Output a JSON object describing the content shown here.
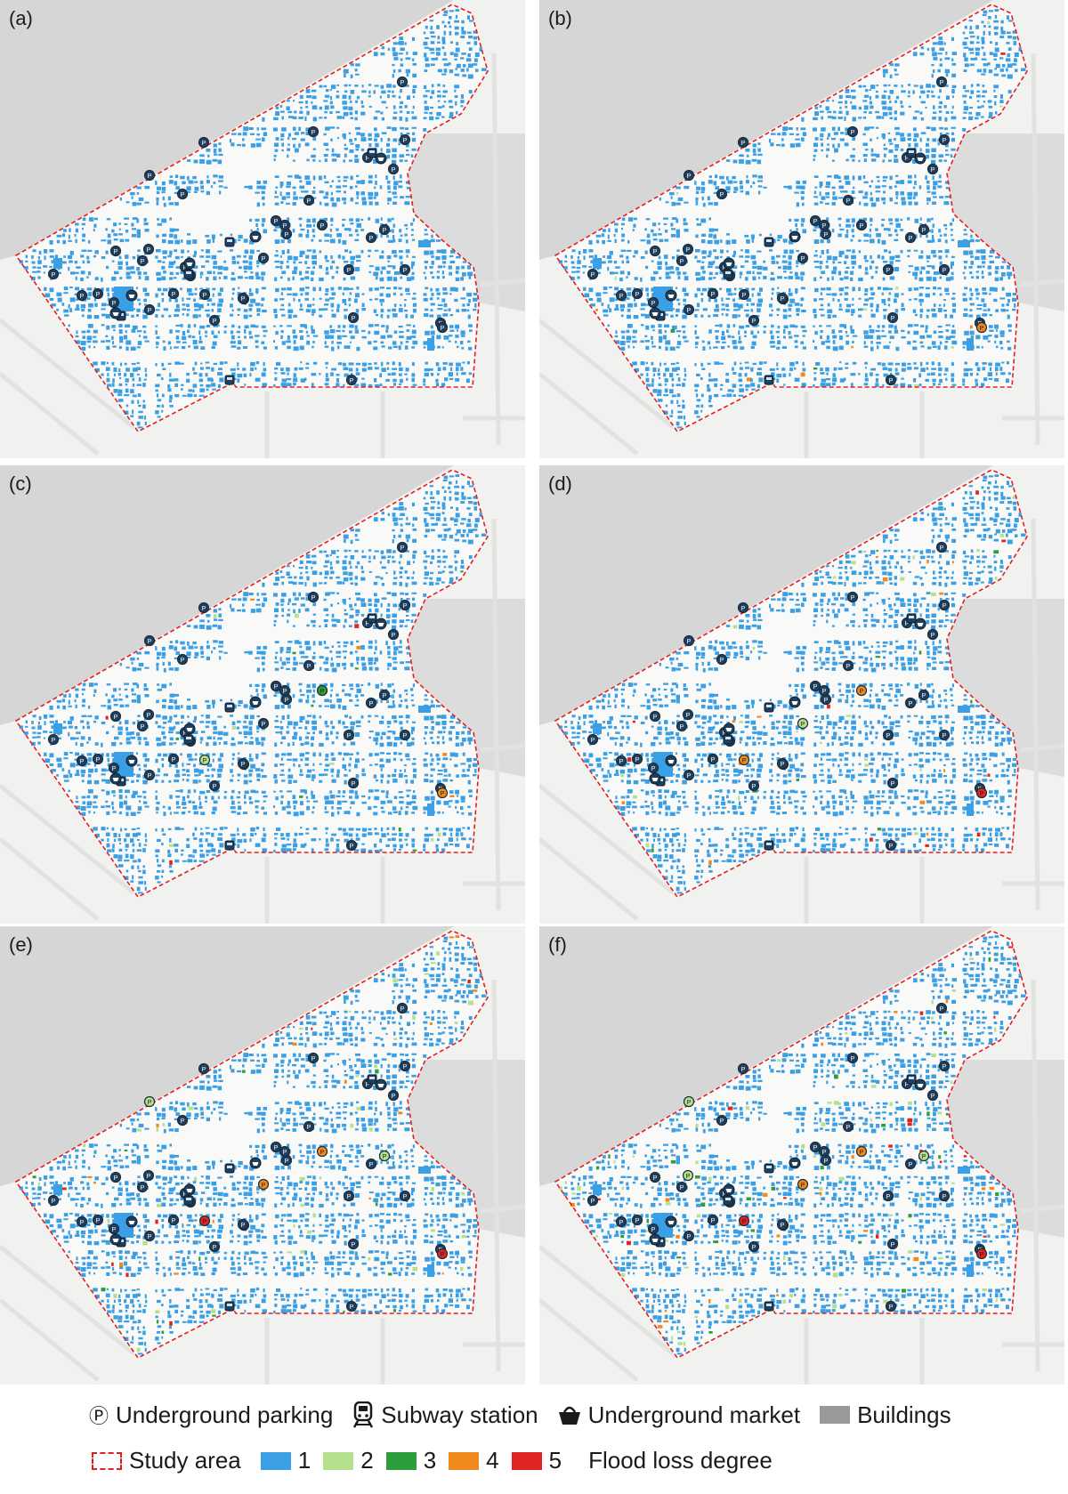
{
  "panels": [
    {
      "label": "(a)",
      "degree_marks": []
    },
    {
      "label": "(b)",
      "degree_marks": [
        {
          "pt": 36,
          "level": 4
        }
      ]
    },
    {
      "label": "(c)",
      "degree_marks": [
        {
          "pt": 36,
          "level": 4
        },
        {
          "pt": 22,
          "level": 2
        },
        {
          "pt": 27,
          "level": 3
        }
      ]
    },
    {
      "label": "(d)",
      "degree_marks": [
        {
          "pt": 36,
          "level": 5
        },
        {
          "pt": 22,
          "level": 4
        },
        {
          "pt": 27,
          "level": 4
        },
        {
          "pt": 31,
          "level": 2
        }
      ]
    },
    {
      "label": "(e)",
      "degree_marks": [
        {
          "pt": 36,
          "level": 5
        },
        {
          "pt": 22,
          "level": 5
        },
        {
          "pt": 27,
          "level": 4
        },
        {
          "pt": 31,
          "level": 4
        },
        {
          "pt": 6,
          "level": 2
        },
        {
          "pt": 11,
          "level": 2
        }
      ]
    },
    {
      "label": "(f)",
      "degree_marks": [
        {
          "pt": 36,
          "level": 5
        },
        {
          "pt": 22,
          "level": 5
        },
        {
          "pt": 27,
          "level": 4
        },
        {
          "pt": 31,
          "level": 4
        },
        {
          "pt": 6,
          "level": 2
        },
        {
          "pt": 11,
          "level": 2
        },
        {
          "pt": 32,
          "level": 2
        }
      ]
    }
  ],
  "degree_colors": {
    "1": "#3a9fe4",
    "2": "#b5e08d",
    "3": "#2e9e3c",
    "4": "#f08a1c",
    "5": "#e02424"
  },
  "legend": {
    "parking_icon": "Ⓟ",
    "parking_label": "Underground parking",
    "subway_icon": "subway-icon",
    "subway_label": "Subway station",
    "market_icon": "basket-icon",
    "market_label": "Underground market",
    "buildings_label": "Buildings",
    "buildings_color": "#999999",
    "study_area_label": "Study area",
    "degree_labels": [
      "1",
      "2",
      "3",
      "4",
      "5"
    ],
    "degree_title": "Flood loss degree"
  }
}
